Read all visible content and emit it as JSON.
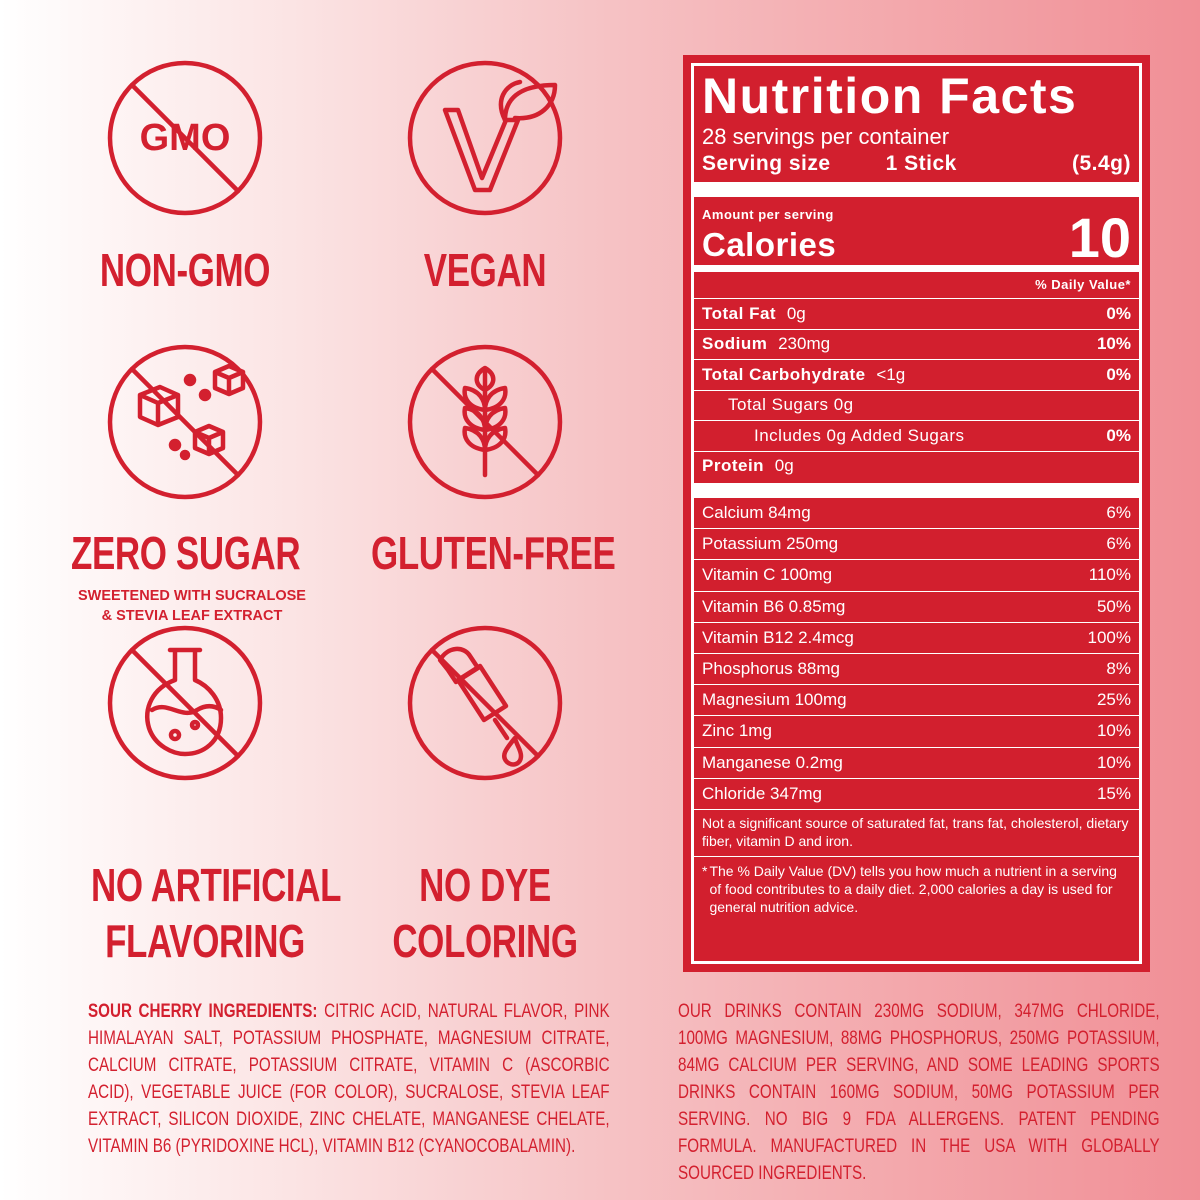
{
  "badges": [
    {
      "icon_text": "GMO",
      "label": [
        "NON-GMO"
      ]
    },
    {
      "label": [
        "VEGAN"
      ]
    },
    {
      "label": [
        "ZERO SUGAR"
      ],
      "note": [
        "SWEETENED WITH SUCRALOSE",
        "& STEVIA LEAF EXTRACT"
      ]
    },
    {
      "label": [
        "GLUTEN-FREE"
      ]
    },
    {
      "label": [
        "NO ARTIFICIAL",
        "FLAVORING"
      ]
    },
    {
      "label": [
        "NO DYE",
        "COLORING"
      ]
    }
  ],
  "nutrition": {
    "title": "Nutrition Facts",
    "servings": "28 servings per container",
    "serving_size_label": "Serving size",
    "serving_size": "1 Stick",
    "serving_weight": "(5.4g)",
    "amount_per_serving": "Amount per serving",
    "calories_label": "Calories",
    "calories": 10,
    "dv_header": "% Daily Value*",
    "rows": [
      {
        "name": "Total Fat",
        "amount": "0g",
        "dv": "0%",
        "level": 0
      },
      {
        "name": "Sodium",
        "amount": "230mg",
        "dv": "10%",
        "level": 0
      },
      {
        "name": "Total Carbohydrate",
        "amount": "<1g",
        "dv": "0%",
        "level": 0
      },
      {
        "name": "Total Sugars 0g",
        "level": 1
      },
      {
        "name": "Includes 0g Added Sugars",
        "dv": "0%",
        "level": 2
      },
      {
        "name": "Protein",
        "amount": "0g",
        "level": 0
      }
    ],
    "micros": [
      {
        "name": "Calcium 84mg",
        "dv": "6%"
      },
      {
        "name": "Potassium 250mg",
        "dv": "6%"
      },
      {
        "name": "Vitamin C 100mg",
        "dv": "110%"
      },
      {
        "name": "Vitamin B6 0.85mg",
        "dv": "50%"
      },
      {
        "name": "Vitamin B12 2.4mcg",
        "dv": "100%"
      },
      {
        "name": "Phosphorus 88mg",
        "dv": "8%"
      },
      {
        "name": "Magnesium 100mg",
        "dv": "25%"
      },
      {
        "name": "Zinc 1mg",
        "dv": "10%"
      },
      {
        "name": "Manganese 0.2mg",
        "dv": "10%"
      },
      {
        "name": "Chloride 347mg",
        "dv": "15%"
      }
    ],
    "footnote": "Not a significant source of saturated fat, trans fat, cholesterol, dietary fiber, vitamin D and iron.",
    "dv_note_mark": "*",
    "dv_note": "The % Daily Value (DV) tells you how much a nutrient in a serving of food contributes to a daily diet. 2,000 calories a day is used for general nutrition advice."
  },
  "ingredients": {
    "label": "SOUR CHERRY INGREDIENTS:",
    "text": "CITRIC ACID, NATURAL FLAVOR, PINK HIMALAYAN SALT, POTASSIUM PHOSPHATE, MAGNESIUM CITRATE, CALCIUM CITRATE, POTASSIUM CITRATE, VITAMIN C (ASCORBIC ACID), VEGETABLE JUICE (FOR COLOR), SUCRALOSE, STEVIA LEAF EXTRACT, SILICON DIOXIDE, ZINC CHELATE, MANGANESE CHELATE, VITAMIN B6 (PYRIDOXINE HCL), VITAMIN B12 (CYANOCOBALAMIN)."
  },
  "claims": "OUR DRINKS CONTAIN 230MG SODIUM, 347MG CHLORIDE, 100MG MAGNESIUM, 88MG PHOSPHORUS, 250MG POTASSIUM, 84MG CALCIUM PER SERVING, AND SOME LEADING SPORTS DRINKS CONTAIN 160MG SODIUM, 50MG POTASSIUM PER SERVING. NO BIG 9 FDA ALLERGENS. PATENT PENDING FORMULA. MANUFACTURED IN THE USA WITH GLOBALLY SOURCED INGREDIENTS."
}
